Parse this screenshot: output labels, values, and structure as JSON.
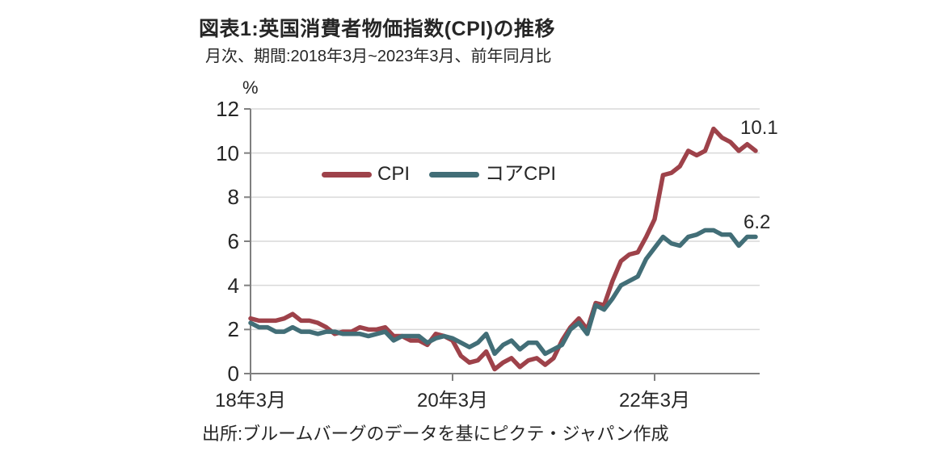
{
  "header": {
    "title": "図表1:英国消費者物価指数(CPI)の推移",
    "subtitle": "月次、期間:2018年3月~2023年3月、前年同月比"
  },
  "source": "出所:ブルームバーグのデータを基にピクテ・ジャパン作成",
  "colors": {
    "cpi_line": "#9E424A",
    "core_cpi_line": "#426E77",
    "axis": "#7F7F7F",
    "grid": "#D9D9D9",
    "text": "#262626"
  },
  "chart_data": {
    "type": "line",
    "unit_label": "%",
    "period": "2018-03 to 2023-03, monthly, year-over-year %",
    "ylim": [
      0,
      12
    ],
    "y_ticks": [
      12,
      10,
      8,
      6,
      4,
      2,
      0
    ],
    "x_tick_labels": [
      "18年3月",
      "20年3月",
      "22年3月"
    ],
    "x_tick_month_index": [
      0,
      24,
      48
    ],
    "grid": "horizontal",
    "legend_position": "inside-upper-left",
    "series": [
      {
        "name": "CPI",
        "color": "#9E424A",
        "end_label": "10.1",
        "values": [
          2.5,
          2.4,
          2.4,
          2.4,
          2.5,
          2.7,
          2.4,
          2.4,
          2.3,
          2.1,
          1.8,
          1.9,
          1.9,
          2.1,
          2.0,
          2.0,
          2.1,
          1.7,
          1.7,
          1.5,
          1.5,
          1.3,
          1.8,
          1.7,
          1.5,
          0.8,
          0.5,
          0.6,
          1.0,
          0.2,
          0.5,
          0.7,
          0.3,
          0.6,
          0.7,
          0.4,
          0.7,
          1.5,
          2.1,
          2.5,
          2.0,
          3.2,
          3.1,
          4.2,
          5.1,
          5.4,
          5.5,
          6.2,
          7.0,
          9.0,
          9.1,
          9.4,
          10.1,
          9.9,
          10.1,
          11.1,
          10.7,
          10.5,
          10.1,
          10.4,
          10.1
        ]
      },
      {
        "name": "コアCPI",
        "color": "#426E77",
        "end_label": "6.2",
        "values": [
          2.3,
          2.1,
          2.1,
          1.9,
          1.9,
          2.1,
          1.9,
          1.9,
          1.8,
          1.9,
          1.9,
          1.8,
          1.8,
          1.8,
          1.7,
          1.8,
          1.9,
          1.5,
          1.7,
          1.7,
          1.7,
          1.4,
          1.6,
          1.7,
          1.6,
          1.4,
          1.2,
          1.4,
          1.8,
          0.9,
          1.3,
          1.5,
          1.1,
          1.4,
          1.4,
          0.9,
          1.1,
          1.3,
          2.0,
          2.3,
          1.8,
          3.1,
          2.9,
          3.4,
          4.0,
          4.2,
          4.4,
          5.2,
          5.7,
          6.2,
          5.9,
          5.8,
          6.2,
          6.3,
          6.5,
          6.5,
          6.3,
          6.3,
          5.8,
          6.2,
          6.2
        ]
      }
    ]
  }
}
